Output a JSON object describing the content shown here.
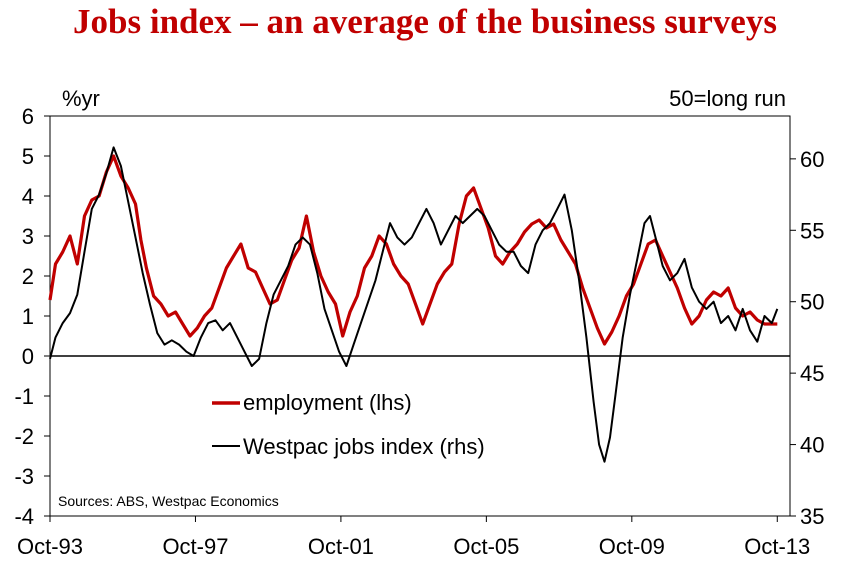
{
  "chart_data": {
    "type": "line",
    "title": "Jobs index – an average of the business surveys",
    "left_axis_unit": "%yr",
    "right_axis_unit": "50=long run",
    "source": "Sources: ABS, Westpac Economics",
    "x_range": [
      1993.75,
      2014.1
    ],
    "x_ticks": [
      {
        "label": "Oct-93",
        "value": 1993.75
      },
      {
        "label": "Oct-97",
        "value": 1997.75
      },
      {
        "label": "Oct-01",
        "value": 2001.75
      },
      {
        "label": "Oct-05",
        "value": 2005.75
      },
      {
        "label": "Oct-09",
        "value": 2009.75
      },
      {
        "label": "Oct-13",
        "value": 2013.75
      }
    ],
    "y_left": {
      "min": -4,
      "max": 6,
      "ticks": [
        "-4",
        "-3",
        "-2",
        "-1",
        "0",
        "1",
        "2",
        "3",
        "4",
        "5",
        "6"
      ]
    },
    "y_right": {
      "min": 35,
      "max": 63,
      "ticks": [
        "35",
        "40",
        "45",
        "50",
        "55",
        "60"
      ]
    },
    "legend_placement": "bottom-left",
    "series": [
      {
        "name": "employment (lhs)",
        "axis": "left",
        "color": "#c00000",
        "points": [
          [
            1993.75,
            1.4
          ],
          [
            1993.9,
            2.3
          ],
          [
            1994.1,
            2.6
          ],
          [
            1994.3,
            3.0
          ],
          [
            1994.5,
            2.3
          ],
          [
            1994.7,
            3.5
          ],
          [
            1994.9,
            3.9
          ],
          [
            1995.1,
            4.0
          ],
          [
            1995.3,
            4.6
          ],
          [
            1995.5,
            5.0
          ],
          [
            1995.7,
            4.5
          ],
          [
            1995.9,
            4.2
          ],
          [
            1996.1,
            3.8
          ],
          [
            1996.25,
            2.9
          ],
          [
            1996.4,
            2.2
          ],
          [
            1996.6,
            1.5
          ],
          [
            1996.8,
            1.3
          ],
          [
            1997.0,
            1.0
          ],
          [
            1997.2,
            1.1
          ],
          [
            1997.4,
            0.8
          ],
          [
            1997.6,
            0.5
          ],
          [
            1997.8,
            0.7
          ],
          [
            1998.0,
            1.0
          ],
          [
            1998.2,
            1.2
          ],
          [
            1998.4,
            1.7
          ],
          [
            1998.6,
            2.2
          ],
          [
            1998.8,
            2.5
          ],
          [
            1999.0,
            2.8
          ],
          [
            1999.2,
            2.2
          ],
          [
            1999.4,
            2.1
          ],
          [
            1999.6,
            1.7
          ],
          [
            1999.8,
            1.3
          ],
          [
            2000.0,
            1.4
          ],
          [
            2000.2,
            1.9
          ],
          [
            2000.4,
            2.4
          ],
          [
            2000.6,
            2.7
          ],
          [
            2000.8,
            3.5
          ],
          [
            2001.0,
            2.6
          ],
          [
            2001.2,
            2.0
          ],
          [
            2001.4,
            1.6
          ],
          [
            2001.6,
            1.3
          ],
          [
            2001.8,
            0.5
          ],
          [
            2002.0,
            1.1
          ],
          [
            2002.2,
            1.5
          ],
          [
            2002.4,
            2.2
          ],
          [
            2002.6,
            2.5
          ],
          [
            2002.8,
            3.0
          ],
          [
            2003.0,
            2.8
          ],
          [
            2003.2,
            2.3
          ],
          [
            2003.4,
            2.0
          ],
          [
            2003.6,
            1.8
          ],
          [
            2003.8,
            1.3
          ],
          [
            2004.0,
            0.8
          ],
          [
            2004.2,
            1.3
          ],
          [
            2004.4,
            1.8
          ],
          [
            2004.6,
            2.1
          ],
          [
            2004.8,
            2.3
          ],
          [
            2005.0,
            3.3
          ],
          [
            2005.2,
            4.0
          ],
          [
            2005.4,
            4.2
          ],
          [
            2005.6,
            3.7
          ],
          [
            2005.8,
            3.2
          ],
          [
            2006.0,
            2.5
          ],
          [
            2006.2,
            2.3
          ],
          [
            2006.4,
            2.6
          ],
          [
            2006.6,
            2.8
          ],
          [
            2006.8,
            3.1
          ],
          [
            2007.0,
            3.3
          ],
          [
            2007.2,
            3.4
          ],
          [
            2007.4,
            3.2
          ],
          [
            2007.6,
            3.3
          ],
          [
            2007.8,
            2.9
          ],
          [
            2008.0,
            2.6
          ],
          [
            2008.2,
            2.3
          ],
          [
            2008.4,
            1.7
          ],
          [
            2008.6,
            1.2
          ],
          [
            2008.8,
            0.7
          ],
          [
            2009.0,
            0.3
          ],
          [
            2009.2,
            0.6
          ],
          [
            2009.4,
            1.0
          ],
          [
            2009.6,
            1.5
          ],
          [
            2009.8,
            1.8
          ],
          [
            2010.0,
            2.3
          ],
          [
            2010.2,
            2.8
          ],
          [
            2010.4,
            2.9
          ],
          [
            2010.6,
            2.5
          ],
          [
            2010.8,
            2.1
          ],
          [
            2011.0,
            1.7
          ],
          [
            2011.2,
            1.2
          ],
          [
            2011.4,
            0.8
          ],
          [
            2011.6,
            1.0
          ],
          [
            2011.8,
            1.4
          ],
          [
            2012.0,
            1.6
          ],
          [
            2012.2,
            1.5
          ],
          [
            2012.4,
            1.7
          ],
          [
            2012.6,
            1.2
          ],
          [
            2012.8,
            1.0
          ],
          [
            2013.0,
            1.1
          ],
          [
            2013.2,
            0.9
          ],
          [
            2013.4,
            0.8
          ],
          [
            2013.6,
            0.8
          ],
          [
            2013.75,
            0.8
          ]
        ]
      },
      {
        "name": "Westpac jobs index (rhs)",
        "axis": "right",
        "color": "#000000",
        "points": [
          [
            1993.75,
            46.0
          ],
          [
            1993.9,
            47.5
          ],
          [
            1994.1,
            48.5
          ],
          [
            1994.3,
            49.2
          ],
          [
            1994.5,
            50.5
          ],
          [
            1994.7,
            53.5
          ],
          [
            1994.9,
            56.5
          ],
          [
            1995.1,
            57.5
          ],
          [
            1995.3,
            59.0
          ],
          [
            1995.5,
            60.8
          ],
          [
            1995.7,
            59.5
          ],
          [
            1995.9,
            57.0
          ],
          [
            1996.1,
            54.5
          ],
          [
            1996.3,
            52.0
          ],
          [
            1996.5,
            49.8
          ],
          [
            1996.7,
            47.8
          ],
          [
            1996.9,
            47.0
          ],
          [
            1997.1,
            47.3
          ],
          [
            1997.3,
            47.0
          ],
          [
            1997.5,
            46.5
          ],
          [
            1997.7,
            46.2
          ],
          [
            1997.9,
            47.5
          ],
          [
            1998.1,
            48.5
          ],
          [
            1998.3,
            48.7
          ],
          [
            1998.5,
            48.0
          ],
          [
            1998.7,
            48.5
          ],
          [
            1998.9,
            47.5
          ],
          [
            1999.1,
            46.5
          ],
          [
            1999.3,
            45.5
          ],
          [
            1999.5,
            46.0
          ],
          [
            1999.7,
            48.5
          ],
          [
            1999.9,
            50.5
          ],
          [
            2000.1,
            51.5
          ],
          [
            2000.3,
            52.5
          ],
          [
            2000.5,
            54.0
          ],
          [
            2000.7,
            54.5
          ],
          [
            2000.9,
            54.0
          ],
          [
            2001.1,
            52.0
          ],
          [
            2001.3,
            49.5
          ],
          [
            2001.5,
            48.0
          ],
          [
            2001.7,
            46.5
          ],
          [
            2001.9,
            45.5
          ],
          [
            2002.1,
            47.0
          ],
          [
            2002.3,
            48.5
          ],
          [
            2002.5,
            50.0
          ],
          [
            2002.7,
            51.5
          ],
          [
            2002.9,
            53.5
          ],
          [
            2003.1,
            55.5
          ],
          [
            2003.3,
            54.5
          ],
          [
            2003.5,
            54.0
          ],
          [
            2003.7,
            54.5
          ],
          [
            2003.9,
            55.5
          ],
          [
            2004.1,
            56.5
          ],
          [
            2004.3,
            55.5
          ],
          [
            2004.5,
            54.0
          ],
          [
            2004.7,
            55.0
          ],
          [
            2004.9,
            56.0
          ],
          [
            2005.1,
            55.5
          ],
          [
            2005.3,
            56.0
          ],
          [
            2005.5,
            56.5
          ],
          [
            2005.7,
            56.0
          ],
          [
            2005.9,
            55.0
          ],
          [
            2006.1,
            54.0
          ],
          [
            2006.3,
            53.5
          ],
          [
            2006.5,
            53.5
          ],
          [
            2006.7,
            52.5
          ],
          [
            2006.9,
            52.0
          ],
          [
            2007.1,
            54.0
          ],
          [
            2007.3,
            55.0
          ],
          [
            2007.5,
            55.5
          ],
          [
            2007.7,
            56.5
          ],
          [
            2007.9,
            57.5
          ],
          [
            2008.1,
            55.0
          ],
          [
            2008.3,
            51.5
          ],
          [
            2008.5,
            47.5
          ],
          [
            2008.7,
            43.0
          ],
          [
            2008.85,
            40.0
          ],
          [
            2009.0,
            38.8
          ],
          [
            2009.15,
            40.5
          ],
          [
            2009.3,
            43.5
          ],
          [
            2009.5,
            47.5
          ],
          [
            2009.7,
            50.5
          ],
          [
            2009.9,
            53.0
          ],
          [
            2010.1,
            55.5
          ],
          [
            2010.25,
            56.0
          ],
          [
            2010.4,
            54.5
          ],
          [
            2010.6,
            52.5
          ],
          [
            2010.8,
            51.5
          ],
          [
            2011.0,
            52.0
          ],
          [
            2011.2,
            53.0
          ],
          [
            2011.4,
            51.0
          ],
          [
            2011.6,
            50.0
          ],
          [
            2011.8,
            49.5
          ],
          [
            2012.0,
            50.0
          ],
          [
            2012.2,
            48.5
          ],
          [
            2012.4,
            49.0
          ],
          [
            2012.6,
            48.0
          ],
          [
            2012.8,
            49.5
          ],
          [
            2013.0,
            48.0
          ],
          [
            2013.2,
            47.2
          ],
          [
            2013.4,
            49.0
          ],
          [
            2013.6,
            48.5
          ],
          [
            2013.75,
            49.5
          ]
        ]
      }
    ]
  }
}
